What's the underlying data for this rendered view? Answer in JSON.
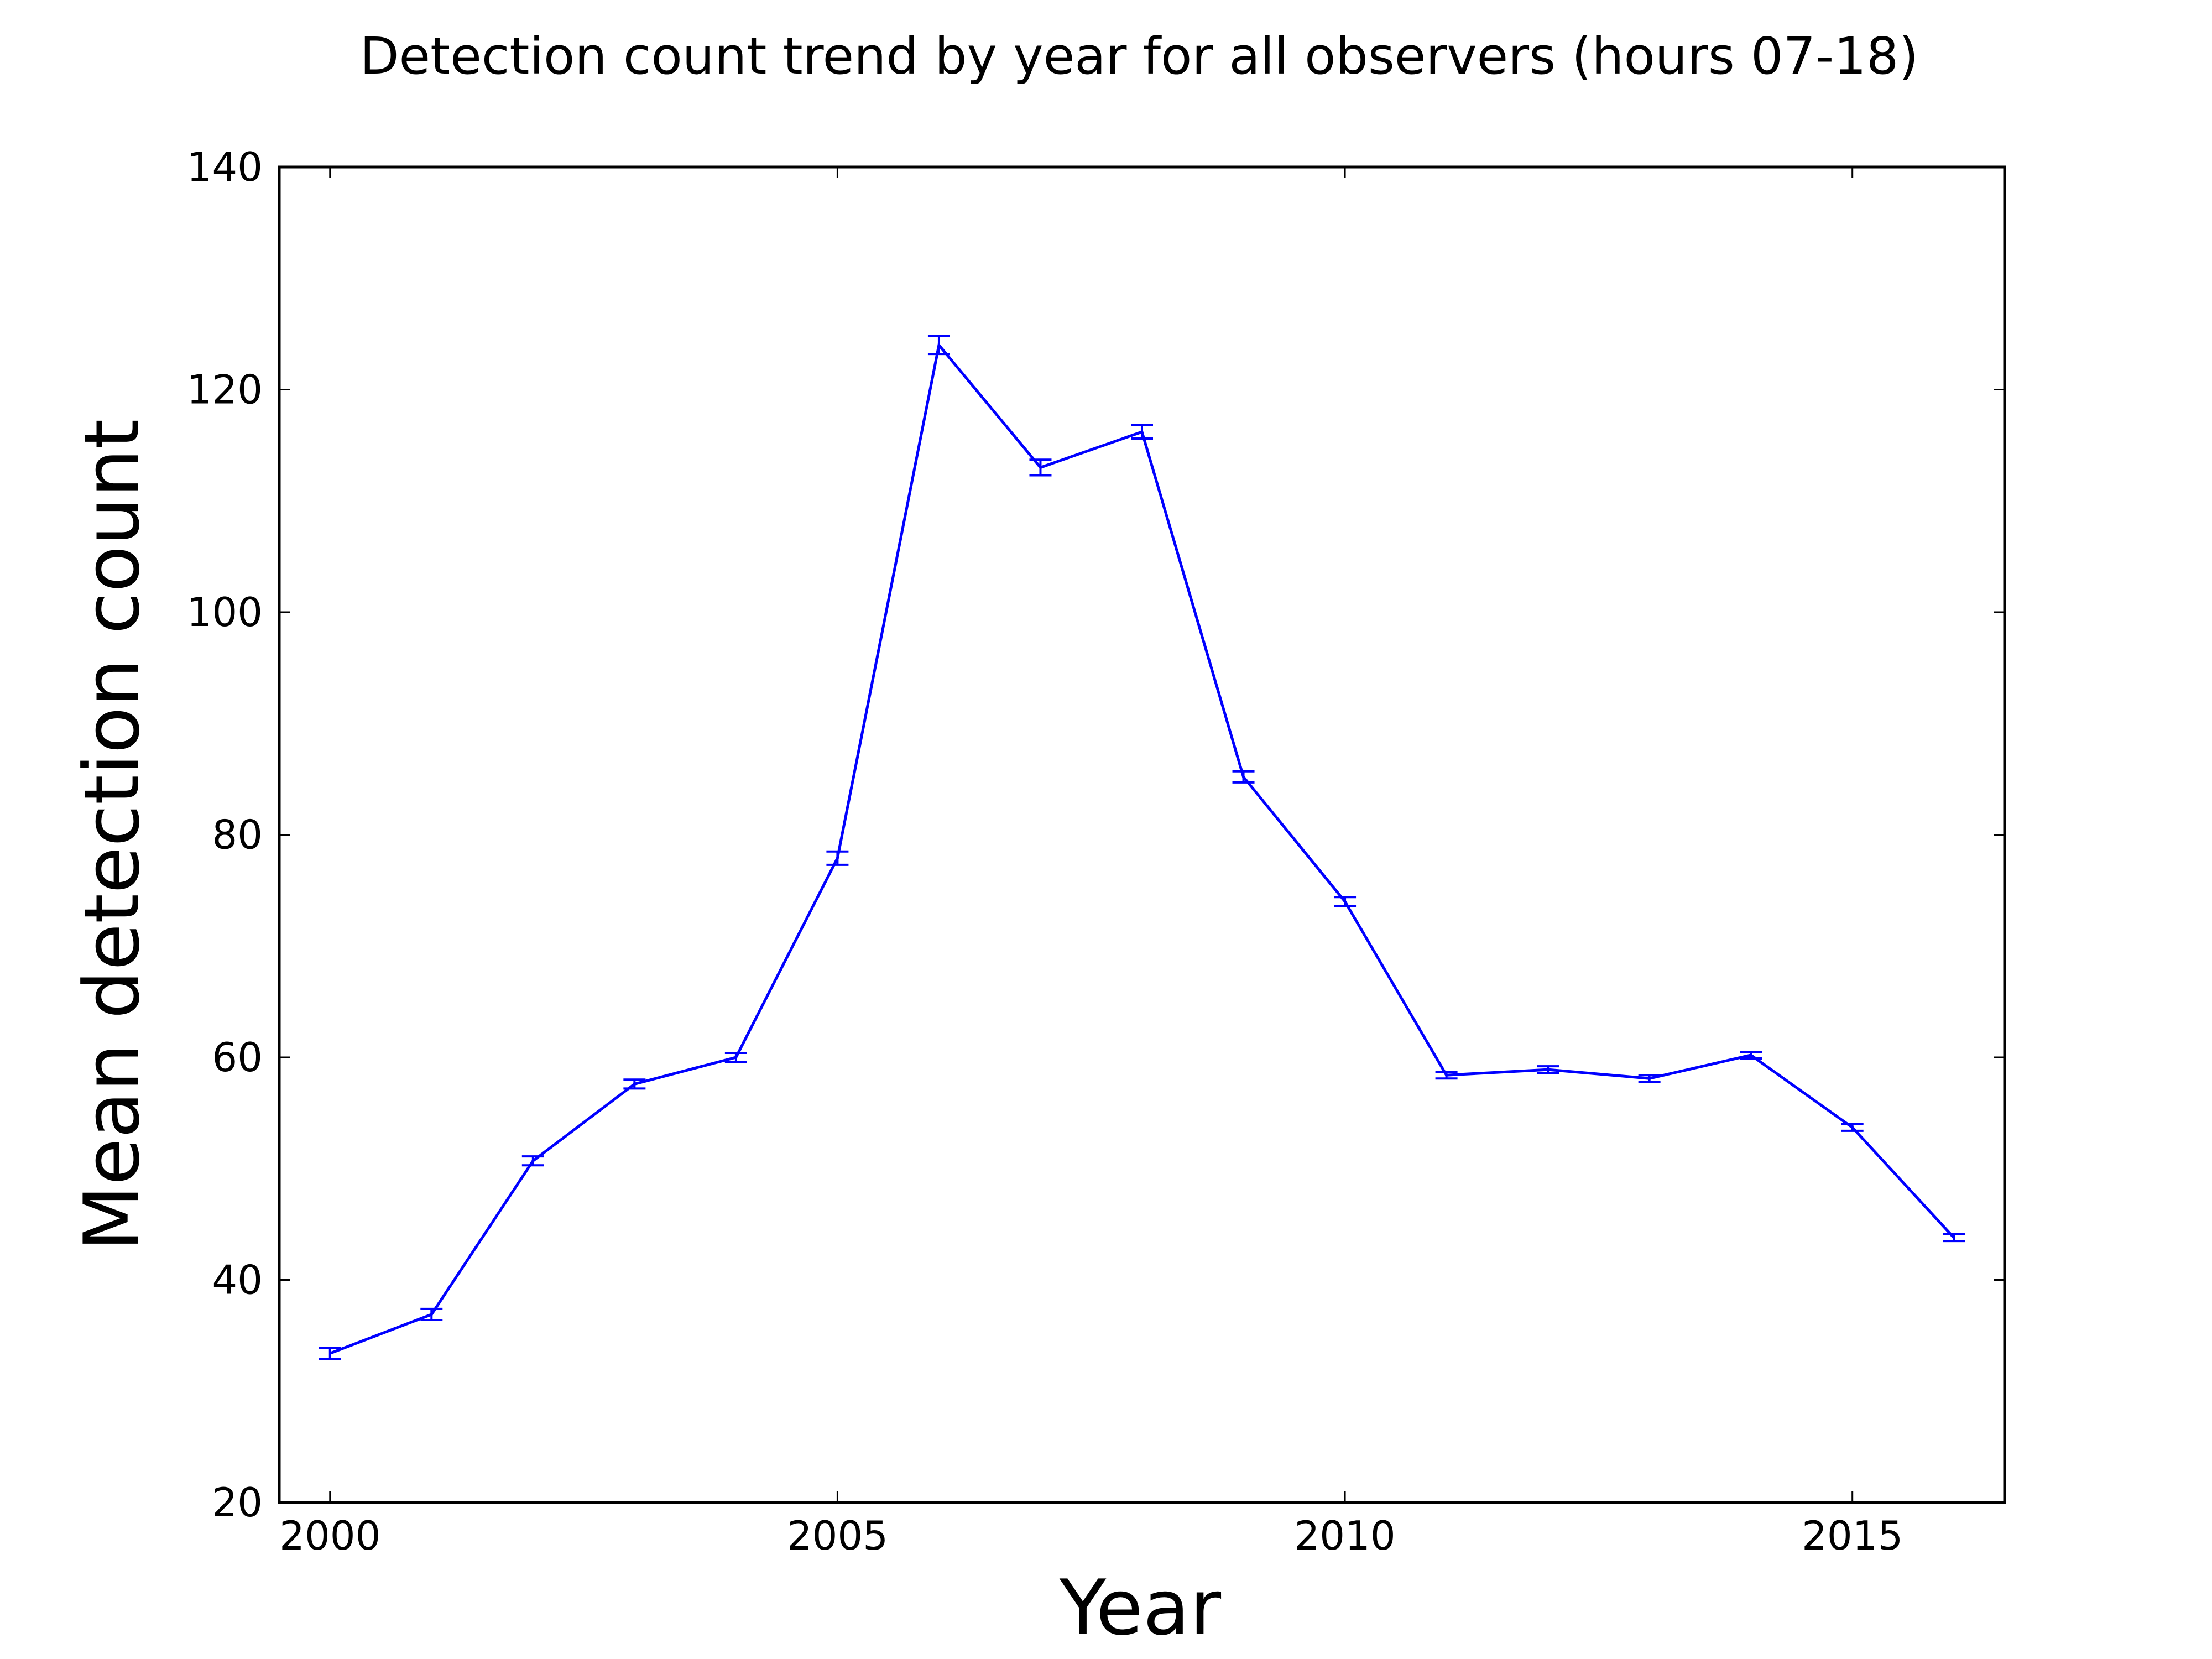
{
  "chart_data": {
    "type": "line",
    "title": "Detection count trend by year for all observers (hours 07-18)",
    "xlabel": "Year",
    "ylabel": "Mean detection count",
    "xlim": [
      1999.5,
      2016.5
    ],
    "ylim": [
      20,
      140
    ],
    "xticks": [
      2000,
      2005,
      2010,
      2015
    ],
    "yticks": [
      20,
      40,
      60,
      80,
      100,
      120,
      140
    ],
    "grid": false,
    "legend": "none",
    "x": [
      2000,
      2001,
      2002,
      2003,
      2004,
      2005,
      2006,
      2007,
      2008,
      2009,
      2010,
      2011,
      2012,
      2013,
      2014,
      2015,
      2016
    ],
    "series": [
      {
        "color": "#0000ff",
        "values": [
          33.4,
          36.9,
          50.7,
          57.6,
          60.0,
          77.9,
          124.0,
          113.0,
          116.2,
          85.2,
          74.0,
          58.4,
          58.9,
          58.1,
          60.2,
          53.7,
          43.8
        ],
        "errors": [
          0.5,
          0.5,
          0.4,
          0.4,
          0.4,
          0.6,
          0.8,
          0.7,
          0.6,
          0.5,
          0.4,
          0.3,
          0.3,
          0.3,
          0.3,
          0.3,
          0.3
        ]
      }
    ]
  }
}
